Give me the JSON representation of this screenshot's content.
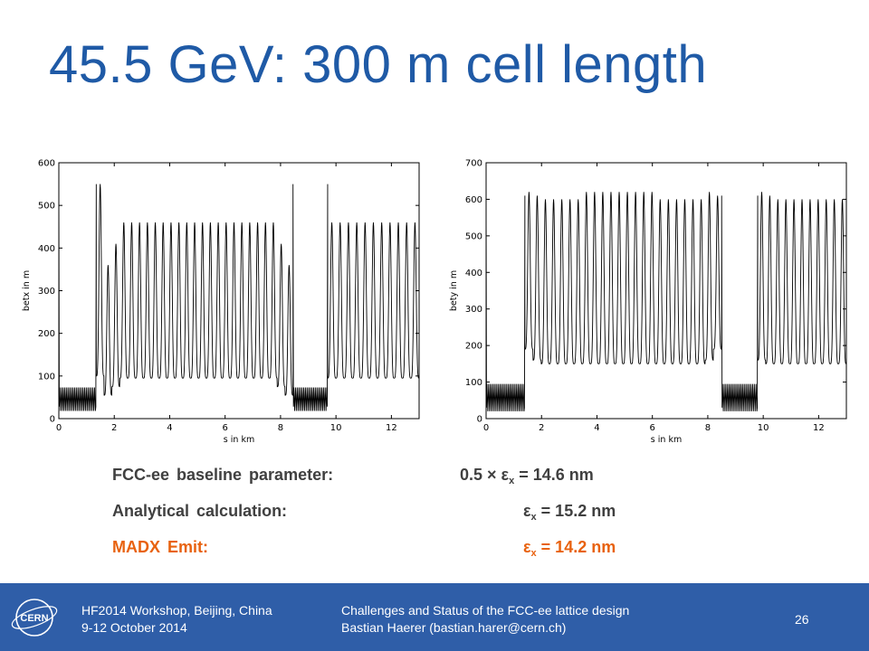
{
  "slide": {
    "title": "45.5 GeV: 300 m cell length",
    "page_number": "26"
  },
  "parameters": [
    {
      "name": "FCC-ee baseline parameter:",
      "value_prefix": "0.5 × ε",
      "value_sub": "x",
      "value_suffix": " = 14.6 nm",
      "highlight": false
    },
    {
      "name": "Analytical calculation:",
      "value_prefix": "ε",
      "value_sub": "x",
      "value_suffix": " = 15.2 nm",
      "highlight": false
    },
    {
      "name": "MADX Emit:",
      "value_prefix": "ε",
      "value_sub": "x",
      "value_suffix": " = 14.2 nm",
      "highlight": true
    }
  ],
  "footer": {
    "event_line1": "HF2014 Workshop, Beijing, China",
    "event_line2": "9-12 October 2014",
    "talk_line1": "Challenges and Status of the FCC-ee lattice design",
    "talk_line2": "Bastian Haerer (bastian.harer@cern.ch)",
    "logo_text": "CERN"
  },
  "colors": {
    "title": "#1f5aa6",
    "highlight": "#e8620f",
    "footer_bg": "#2f5ea8",
    "text": "#404040"
  },
  "chart_data": [
    {
      "type": "line",
      "xlabel": "s in km",
      "ylabel": "betx in m",
      "xlim": [
        0,
        13.0
      ],
      "ylim": [
        0,
        600
      ],
      "xticks": [
        0,
        2,
        4,
        6,
        8,
        10,
        12
      ],
      "yticks": [
        0,
        100,
        200,
        300,
        400,
        500,
        600
      ],
      "grid": false,
      "series": [
        {
          "segments": [
            {
              "x_range": [
                0,
                1.35
              ],
              "kind": "straight",
              "low": 18,
              "high": 73,
              "period": 0.06,
              "edge_peak": 550
            },
            {
              "x_range": [
                1.35,
                8.45
              ],
              "kind": "arc",
              "period": 0.3,
              "cell_highs": [
                550,
                360,
                410,
                460,
                460,
                460,
                460,
                460,
                460,
                460,
                460,
                460,
                460,
                460,
                460,
                460,
                460,
                460,
                460,
                460,
                460,
                460,
                460,
                410,
                360
              ],
              "cell_lows": [
                100,
                55,
                75,
                95,
                95,
                95,
                95,
                95,
                95,
                95,
                95,
                95,
                95,
                95,
                95,
                95,
                95,
                95,
                95,
                95,
                95,
                95,
                95,
                75,
                55
              ]
            },
            {
              "x_range": [
                8.45,
                9.7
              ],
              "kind": "straight",
              "low": 18,
              "high": 73,
              "period": 0.06,
              "edge_peak": 550
            },
            {
              "x_range": [
                9.7,
                13.0
              ],
              "kind": "arc",
              "period": 0.3,
              "cell_highs": [
                460,
                460,
                460,
                460,
                460,
                460,
                460,
                460,
                460,
                460,
                460
              ],
              "cell_lows": [
                95,
                95,
                95,
                95,
                95,
                95,
                95,
                95,
                95,
                95,
                95
              ]
            }
          ]
        }
      ]
    },
    {
      "type": "line",
      "xlabel": "s in km",
      "ylabel": "bety in m",
      "xlim": [
        0,
        13.0
      ],
      "ylim": [
        0,
        700
      ],
      "xticks": [
        0,
        2,
        4,
        6,
        8,
        10,
        12
      ],
      "yticks": [
        0,
        100,
        200,
        300,
        400,
        500,
        600,
        700
      ],
      "grid": false,
      "series": [
        {
          "segments": [
            {
              "x_range": [
                0,
                1.4
              ],
              "kind": "straight",
              "low": 20,
              "high": 95,
              "period": 0.06,
              "edge_peak": 610
            },
            {
              "x_range": [
                1.4,
                8.5
              ],
              "kind": "arc",
              "period": 0.3,
              "cell_highs": [
                620,
                610,
                600,
                600,
                600,
                600,
                600,
                620,
                620,
                620,
                620,
                620,
                620,
                620,
                620,
                620,
                600,
                600,
                600,
                600,
                600,
                600,
                620,
                610
              ],
              "cell_lows": [
                190,
                160,
                150,
                150,
                150,
                150,
                150,
                150,
                150,
                150,
                150,
                150,
                150,
                150,
                150,
                150,
                150,
                150,
                150,
                150,
                150,
                150,
                160,
                190
              ]
            },
            {
              "x_range": [
                8.5,
                9.8
              ],
              "kind": "straight",
              "low": 20,
              "high": 95,
              "period": 0.06,
              "edge_peak": 610
            },
            {
              "x_range": [
                9.8,
                13.0
              ],
              "kind": "arc",
              "period": 0.3,
              "cell_highs": [
                620,
                610,
                600,
                600,
                600,
                600,
                600,
                600,
                600,
                600,
                600
              ],
              "cell_lows": [
                160,
                150,
                150,
                150,
                150,
                150,
                150,
                150,
                150,
                150,
                150
              ]
            }
          ]
        }
      ]
    }
  ]
}
